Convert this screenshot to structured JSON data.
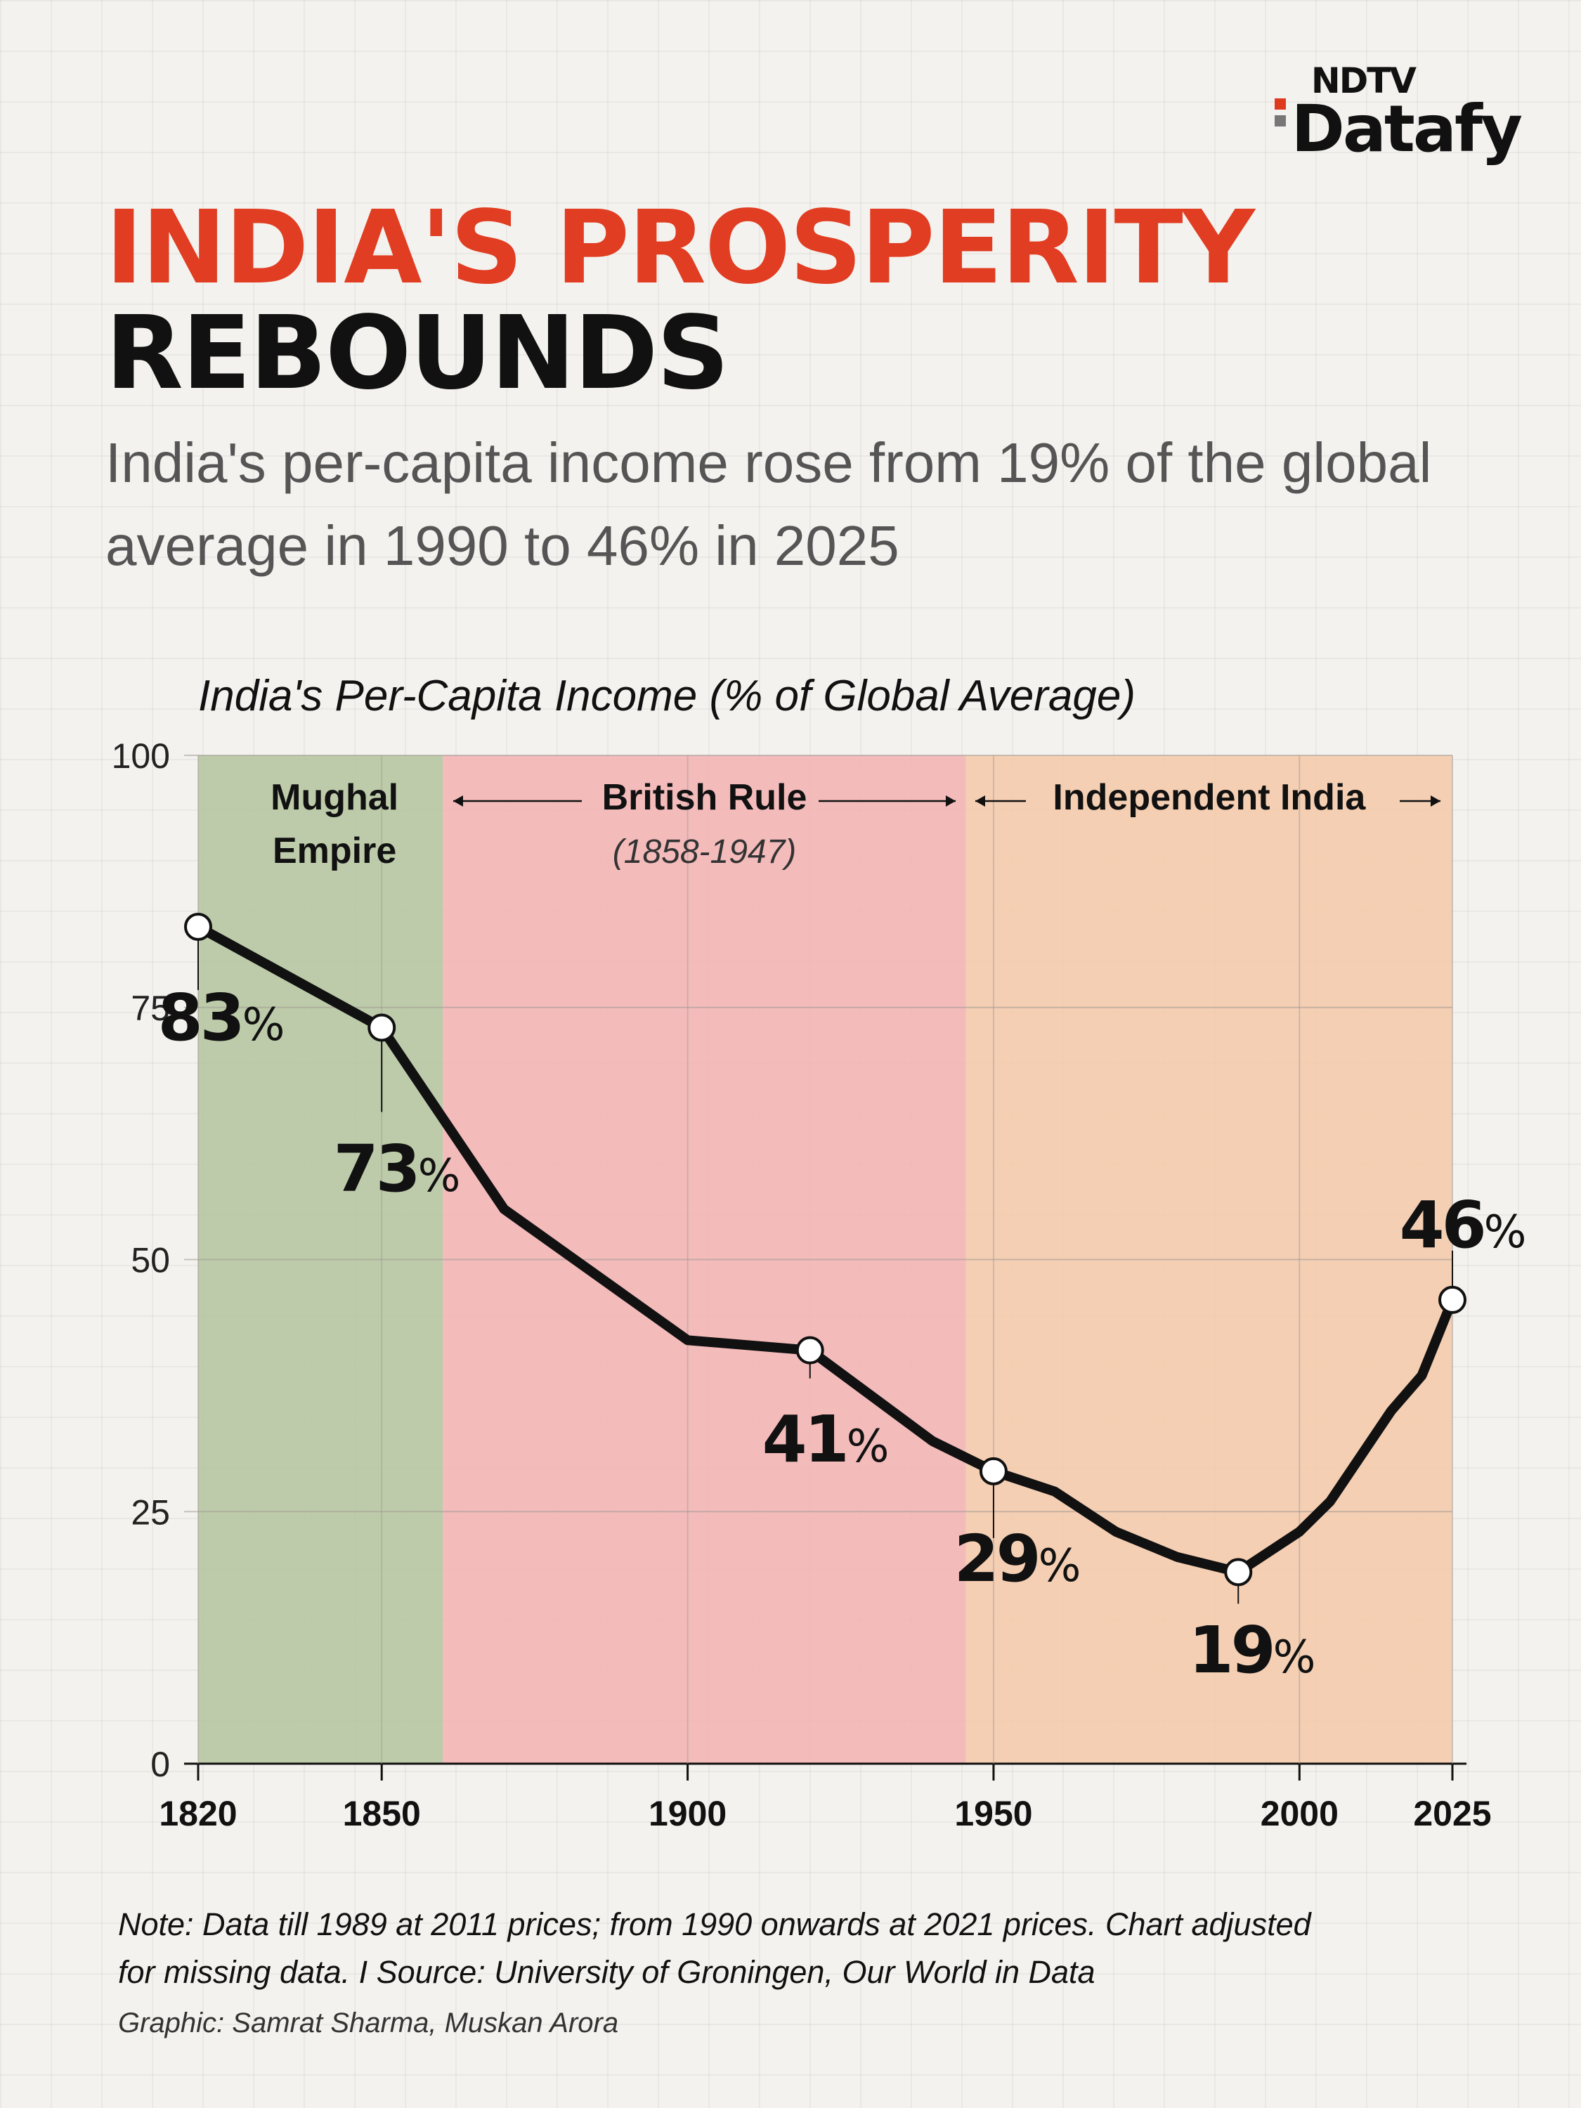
{
  "brand": {
    "top": "NDTV",
    "main": "Datafy"
  },
  "headline": {
    "line1": "INDIA'S PROSPERITY",
    "line2": "REBOUNDS"
  },
  "subtitle": "India's per-capita income rose from 19% of the global average in 1990 to 46% in 2025",
  "chart_title": "India's Per-Capita Income (% of Global Average)",
  "colors": {
    "headline_accent": "#e03d22",
    "mughal_band": "#b3c49d",
    "british_band": "#f3b1b1",
    "independent_band": "#f4c9a8",
    "line": "#111111"
  },
  "chart_data": {
    "type": "line",
    "title": "India's Per-Capita Income (% of Global Average)",
    "xlabel": "",
    "ylabel": "",
    "xlim": [
      1820,
      2025
    ],
    "ylim": [
      0,
      100
    ],
    "x_ticks": [
      "1820",
      "1850",
      "1900",
      "1950",
      "2000",
      "2025"
    ],
    "y_ticks": [
      "0",
      "25",
      "50",
      "75",
      "100"
    ],
    "grid": true,
    "series": [
      {
        "values": [
          {
            "x": 1820,
            "y": 83
          },
          {
            "x": 1850,
            "y": 73
          },
          {
            "x": 1870,
            "y": 55
          },
          {
            "x": 1900,
            "y": 42
          },
          {
            "x": 1920,
            "y": 41
          },
          {
            "x": 1940,
            "y": 32
          },
          {
            "x": 1950,
            "y": 29
          },
          {
            "x": 1960,
            "y": 27
          },
          {
            "x": 1970,
            "y": 23
          },
          {
            "x": 1980,
            "y": 20.5
          },
          {
            "x": 1990,
            "y": 19
          },
          {
            "x": 2000,
            "y": 23
          },
          {
            "x": 2005,
            "y": 26
          },
          {
            "x": 2015,
            "y": 35
          },
          {
            "x": 2020,
            "y": 38.5
          },
          {
            "x": 2025,
            "y": 46
          }
        ]
      }
    ],
    "eras": [
      {
        "label": "Mughal Empire",
        "start": 1820,
        "end": 1860
      },
      {
        "label": "British Rule",
        "sublabel": "(1858-1947)",
        "start": 1860,
        "end": 1945.5
      },
      {
        "label": "Independent India",
        "start": 1945.5,
        "end": 2025
      }
    ],
    "annotations": [
      {
        "x": 1820,
        "y": 83,
        "value": "83",
        "unit": "%"
      },
      {
        "x": 1850,
        "y": 73,
        "value": "73",
        "unit": "%"
      },
      {
        "x": 1920,
        "y": 41,
        "value": "41",
        "unit": "%"
      },
      {
        "x": 1950,
        "y": 29,
        "value": "29",
        "unit": "%"
      },
      {
        "x": 1990,
        "y": 19,
        "value": "19",
        "unit": "%"
      },
      {
        "x": 2025,
        "y": 46,
        "value": "46",
        "unit": "%"
      }
    ]
  },
  "notes": {
    "line1": "Note: Data till 1989 at 2011 prices; from 1990 onwards at 2021 prices. Chart adjusted",
    "line2": "for missing data. I Source: University of Groningen, Our World in Data",
    "credit": "Graphic: Samrat Sharma, Muskan Arora"
  }
}
